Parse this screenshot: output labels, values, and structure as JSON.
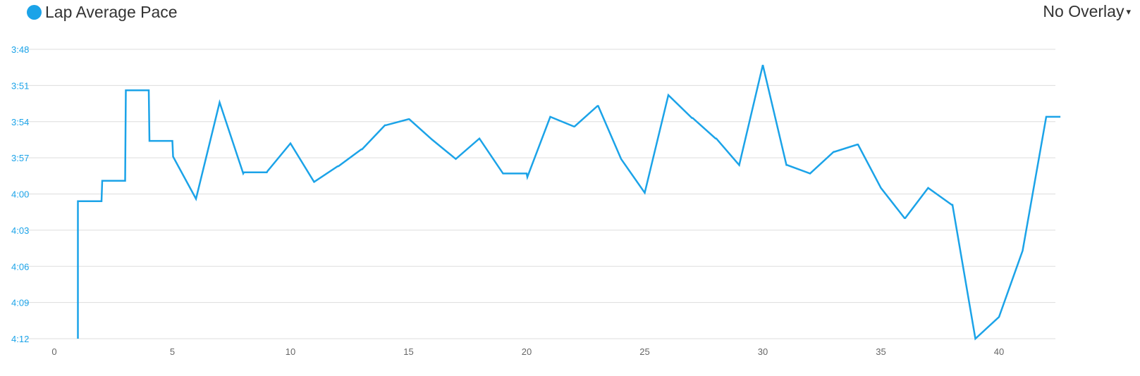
{
  "legend": {
    "label": "Lap Average Pace",
    "color": "#1ba3e8"
  },
  "overlay": {
    "label": "No Overlay",
    "caret": "▾"
  },
  "colors": {
    "line": "#1ba3e8",
    "y_tick_text": "#1ba3e8",
    "grid": "#dddddd"
  },
  "chart_data": {
    "type": "line",
    "step": true,
    "xlabel": "",
    "ylabel": "",
    "x_ticks": [
      0,
      5,
      10,
      15,
      20,
      25,
      30,
      35,
      40
    ],
    "y_ticks": [
      "3:48",
      "3:51",
      "3:54",
      "3:57",
      "4:00",
      "4:03",
      "4:06",
      "4:09",
      "4:12"
    ],
    "y_unit": "seconds per lap (pace)",
    "y_inverted": true,
    "xlim": [
      0,
      42.6
    ],
    "ylim": [
      228,
      252
    ],
    "series": [
      {
        "name": "Lap Average Pace",
        "x": [
          1,
          2,
          2.03,
          3,
          3.03,
          4,
          4.03,
          5,
          5.03,
          6,
          7,
          8,
          8.03,
          9,
          9.03,
          10,
          11,
          12,
          12.03,
          13,
          13.03,
          14,
          14.03,
          15,
          15.03,
          16,
          17,
          18,
          19,
          20,
          20.03,
          21,
          22,
          22.03,
          23,
          23.03,
          24,
          25,
          26,
          27,
          27.03,
          28,
          28.03,
          29,
          30,
          31,
          31.03,
          32,
          33,
          33.03,
          34,
          34.03,
          35,
          36,
          36.03,
          37,
          38,
          38.03,
          39,
          40,
          41,
          42,
          42.6
        ],
        "y": [
          240.6,
          240.6,
          238.9,
          238.9,
          231.4,
          231.4,
          235.6,
          235.6,
          236.9,
          240.4,
          232.4,
          238.3,
          238.2,
          238.2,
          238.1,
          235.8,
          239.0,
          237.7,
          237.7,
          236.3,
          236.3,
          234.3,
          234.3,
          233.8,
          233.8,
          235.5,
          237.1,
          235.4,
          238.3,
          238.3,
          238.6,
          233.6,
          234.4,
          234.4,
          232.7,
          232.7,
          237.1,
          239.9,
          231.8,
          233.7,
          233.7,
          235.4,
          235.4,
          237.6,
          229.3,
          237.6,
          237.6,
          238.3,
          236.5,
          236.5,
          235.9,
          235.9,
          239.5,
          242.0,
          242.0,
          239.5,
          240.9,
          240.9,
          252.0,
          250.2,
          244.7,
          233.6,
          233.6
        ]
      }
    ]
  }
}
